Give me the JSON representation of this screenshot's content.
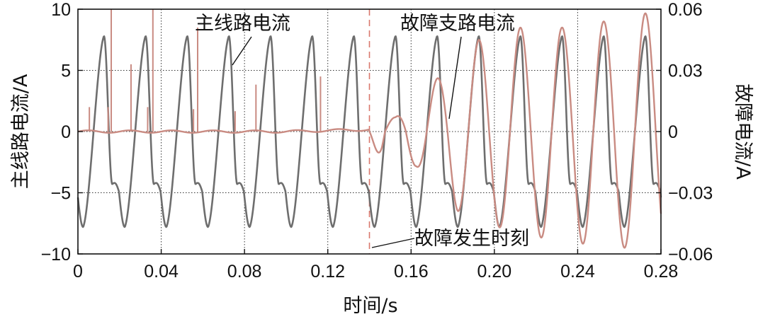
{
  "chart_data": {
    "type": "line",
    "xlabel": "时间/s",
    "ylabel_left": "主线路电流/A",
    "ylabel_right": "故障电流/A",
    "xlim": [
      0,
      0.28
    ],
    "ylim_left": [
      -10,
      10
    ],
    "ylim_right": [
      -0.06,
      0.06
    ],
    "x_ticks": [
      0,
      0.04,
      0.08,
      0.12,
      0.16,
      0.2,
      0.24,
      0.28
    ],
    "x_tick_labels": [
      "0",
      "0.04",
      "0.08",
      "0.12",
      "0.16",
      "0.20",
      "0.24",
      "0.28"
    ],
    "y_left_ticks": [
      -10,
      -5,
      0,
      5,
      10
    ],
    "y_left_tick_labels": [
      "−10",
      "−5",
      "0",
      "5",
      "10"
    ],
    "y_right_ticks": [
      -0.06,
      -0.03,
      0,
      0.03,
      0.06
    ],
    "y_right_tick_labels": [
      "−0.06",
      "−0.03",
      "0",
      "0.03",
      "0.06"
    ],
    "grid": "dotted",
    "fault_time": 0.14,
    "series": [
      {
        "name": "主线路电流",
        "axis": "left",
        "color": "#6e6e6e",
        "frequency_hz": 50,
        "peak_pos": 7.8,
        "peak_neg": -7.9,
        "peak_pos_times": [
          0.0125,
          0.0325,
          0.0525,
          0.0725,
          0.0925,
          0.1125,
          0.1325,
          0.1525,
          0.1725,
          0.1925,
          0.2125,
          0.2325,
          0.2525,
          0.2725
        ],
        "peak_neg_times": [
          0.0025,
          0.0225,
          0.0425,
          0.0625,
          0.0825,
          0.1025,
          0.1225,
          0.1425,
          0.1625,
          0.1825,
          0.2025,
          0.2225,
          0.2425,
          0.2625
        ]
      },
      {
        "name": "故障支路电流",
        "axis": "right",
        "color": "#c98b82",
        "pre_fault_value": 0,
        "spike_times": [
          0.0055,
          0.0145,
          0.016,
          0.0255,
          0.0335,
          0.036,
          0.0555,
          0.0575,
          0.0755,
          0.0855,
          0.1165
        ],
        "spike_values": [
          0.012,
          0.012,
          0.065,
          0.033,
          0.012,
          0.065,
          0.011,
          0.051,
          0.01,
          0.023,
          0.027
        ],
        "post_fault_peak_times": [
          0.1525,
          0.1725,
          0.1925,
          0.2125,
          0.2325,
          0.2525,
          0.2725
        ],
        "post_fault_peaks": [
          0.007,
          0.026,
          0.045,
          0.051,
          0.051,
          0.054,
          0.058
        ],
        "post_fault_trough_times": [
          0.1625,
          0.1825,
          0.2025,
          0.2225,
          0.2425,
          0.2625
        ],
        "post_fault_troughs": [
          -0.017,
          -0.039,
          -0.047,
          -0.052,
          -0.055,
          -0.057
        ]
      }
    ],
    "annotations": {
      "main_line_label": "主线路电流",
      "fault_branch_label": "故障支路电流",
      "fault_time_label": "故障发生时刻"
    }
  }
}
